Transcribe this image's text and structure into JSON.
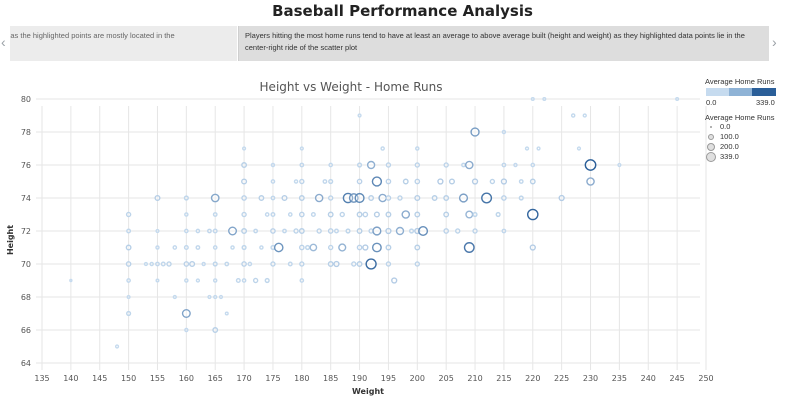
{
  "dashboard": {
    "title": "Baseball Performance Analysis"
  },
  "story": {
    "prev_caption": "distribution as the highlighted points are mostly located in the",
    "active_caption": "Players hitting the most home runs tend to have at least an average to above average built (height and weight) as they highlighted data points lie in the center-right ride of the scatter plot"
  },
  "icons": {
    "prev": "chevron-left-icon",
    "next": "chevron-right-icon"
  },
  "colors": {
    "low": "#c6dbef",
    "mid": "#8fb3d6",
    "high": "#2b5f99",
    "grid": "#e6e6e6"
  },
  "legend": {
    "color_title": "Average Home Runs",
    "color_min": "0.0",
    "color_max": "339.0",
    "size_title": "Average Home Runs",
    "size_items": [
      "0.0",
      "100.0",
      "200.0",
      "339.0"
    ]
  },
  "chart_data": {
    "type": "scatter",
    "title": "Height vs Weight - Home Runs",
    "xlabel": "Weight",
    "ylabel": "Height",
    "xlim": [
      135,
      250
    ],
    "ylim": [
      64,
      80
    ],
    "xticks": [
      135,
      140,
      145,
      150,
      155,
      160,
      165,
      170,
      175,
      180,
      185,
      190,
      195,
      200,
      205,
      210,
      215,
      220,
      225,
      230,
      235,
      240,
      245,
      250
    ],
    "yticks": [
      64,
      66,
      68,
      70,
      72,
      74,
      76,
      78,
      80
    ],
    "grid": true,
    "points": [
      {
        "x": 140,
        "y": 69,
        "hr": 0
      },
      {
        "x": 148,
        "y": 65,
        "hr": 3
      },
      {
        "x": 150,
        "y": 67,
        "hr": 15
      },
      {
        "x": 150,
        "y": 68,
        "hr": 2
      },
      {
        "x": 150,
        "y": 69,
        "hr": 8
      },
      {
        "x": 150,
        "y": 70,
        "hr": 25
      },
      {
        "x": 150,
        "y": 71,
        "hr": 30
      },
      {
        "x": 150,
        "y": 72,
        "hr": 12
      },
      {
        "x": 150,
        "y": 73,
        "hr": 20
      },
      {
        "x": 153,
        "y": 70,
        "hr": 4
      },
      {
        "x": 154,
        "y": 70,
        "hr": 6
      },
      {
        "x": 155,
        "y": 69,
        "hr": 2
      },
      {
        "x": 155,
        "y": 70,
        "hr": 10
      },
      {
        "x": 155,
        "y": 71,
        "hr": 5
      },
      {
        "x": 155,
        "y": 72,
        "hr": 3
      },
      {
        "x": 155,
        "y": 74,
        "hr": 35
      },
      {
        "x": 156,
        "y": 70,
        "hr": 12
      },
      {
        "x": 157,
        "y": 70,
        "hr": 20
      },
      {
        "x": 158,
        "y": 68,
        "hr": 4
      },
      {
        "x": 158,
        "y": 71,
        "hr": 8
      },
      {
        "x": 160,
        "y": 66,
        "hr": 5
      },
      {
        "x": 160,
        "y": 67,
        "hr": 150
      },
      {
        "x": 160,
        "y": 69,
        "hr": 6
      },
      {
        "x": 160,
        "y": 70,
        "hr": 25
      },
      {
        "x": 160,
        "y": 71,
        "hr": 12
      },
      {
        "x": 160,
        "y": 72,
        "hr": 8
      },
      {
        "x": 160,
        "y": 73,
        "hr": 6
      },
      {
        "x": 160,
        "y": 74,
        "hr": 15
      },
      {
        "x": 161,
        "y": 70,
        "hr": 35
      },
      {
        "x": 162,
        "y": 69,
        "hr": 4
      },
      {
        "x": 162,
        "y": 71,
        "hr": 10
      },
      {
        "x": 162,
        "y": 72,
        "hr": 8
      },
      {
        "x": 163,
        "y": 70,
        "hr": 5
      },
      {
        "x": 164,
        "y": 68,
        "hr": 3
      },
      {
        "x": 164,
        "y": 72,
        "hr": 10
      },
      {
        "x": 165,
        "y": 66,
        "hr": 30
      },
      {
        "x": 165,
        "y": 68,
        "hr": 4
      },
      {
        "x": 165,
        "y": 69,
        "hr": 6
      },
      {
        "x": 165,
        "y": 70,
        "hr": 15
      },
      {
        "x": 165,
        "y": 71,
        "hr": 8
      },
      {
        "x": 165,
        "y": 72,
        "hr": 12
      },
      {
        "x": 165,
        "y": 73,
        "hr": 10
      },
      {
        "x": 165,
        "y": 74,
        "hr": 140
      },
      {
        "x": 166,
        "y": 68,
        "hr": 3
      },
      {
        "x": 167,
        "y": 67,
        "hr": 2
      },
      {
        "x": 167,
        "y": 70,
        "hr": 10
      },
      {
        "x": 168,
        "y": 72,
        "hr": 150
      },
      {
        "x": 168,
        "y": 71,
        "hr": 6
      },
      {
        "x": 169,
        "y": 69,
        "hr": 12
      },
      {
        "x": 170,
        "y": 69,
        "hr": 8
      },
      {
        "x": 170,
        "y": 70,
        "hr": 25
      },
      {
        "x": 170,
        "y": 71,
        "hr": 15
      },
      {
        "x": 170,
        "y": 72,
        "hr": 30
      },
      {
        "x": 170,
        "y": 73,
        "hr": 20
      },
      {
        "x": 170,
        "y": 74,
        "hr": 25
      },
      {
        "x": 170,
        "y": 75,
        "hr": 35
      },
      {
        "x": 170,
        "y": 76,
        "hr": 30
      },
      {
        "x": 170,
        "y": 77,
        "hr": 3
      },
      {
        "x": 171,
        "y": 70,
        "hr": 8
      },
      {
        "x": 172,
        "y": 69,
        "hr": 20
      },
      {
        "x": 172,
        "y": 72,
        "hr": 10
      },
      {
        "x": 173,
        "y": 71,
        "hr": 6
      },
      {
        "x": 173,
        "y": 74,
        "hr": 30
      },
      {
        "x": 174,
        "y": 69,
        "hr": 15
      },
      {
        "x": 174,
        "y": 73,
        "hr": 8
      },
      {
        "x": 175,
        "y": 70,
        "hr": 20
      },
      {
        "x": 175,
        "y": 71,
        "hr": 15
      },
      {
        "x": 175,
        "y": 72,
        "hr": 25
      },
      {
        "x": 175,
        "y": 73,
        "hr": 12
      },
      {
        "x": 175,
        "y": 74,
        "hr": 10
      },
      {
        "x": 175,
        "y": 75,
        "hr": 8
      },
      {
        "x": 175,
        "y": 76,
        "hr": 5
      },
      {
        "x": 176,
        "y": 71,
        "hr": 190
      },
      {
        "x": 177,
        "y": 72,
        "hr": 10
      },
      {
        "x": 177,
        "y": 74,
        "hr": 35
      },
      {
        "x": 178,
        "y": 70,
        "hr": 12
      },
      {
        "x": 178,
        "y": 73,
        "hr": 8
      },
      {
        "x": 179,
        "y": 72,
        "hr": 20
      },
      {
        "x": 179,
        "y": 75,
        "hr": 6
      },
      {
        "x": 180,
        "y": 69,
        "hr": 8
      },
      {
        "x": 180,
        "y": 70,
        "hr": 20
      },
      {
        "x": 180,
        "y": 71,
        "hr": 25
      },
      {
        "x": 180,
        "y": 72,
        "hr": 30
      },
      {
        "x": 180,
        "y": 73,
        "hr": 25
      },
      {
        "x": 180,
        "y": 74,
        "hr": 30
      },
      {
        "x": 180,
        "y": 75,
        "hr": 20
      },
      {
        "x": 180,
        "y": 76,
        "hr": 10
      },
      {
        "x": 180,
        "y": 77,
        "hr": 3
      },
      {
        "x": 181,
        "y": 71,
        "hr": 15
      },
      {
        "x": 182,
        "y": 73,
        "hr": 12
      },
      {
        "x": 182,
        "y": 71,
        "hr": 90
      },
      {
        "x": 183,
        "y": 72,
        "hr": 20
      },
      {
        "x": 183,
        "y": 74,
        "hr": 130
      },
      {
        "x": 184,
        "y": 75,
        "hr": 10
      },
      {
        "x": 185,
        "y": 70,
        "hr": 30
      },
      {
        "x": 185,
        "y": 71,
        "hr": 20
      },
      {
        "x": 185,
        "y": 72,
        "hr": 25
      },
      {
        "x": 185,
        "y": 73,
        "hr": 30
      },
      {
        "x": 185,
        "y": 74,
        "hr": 20
      },
      {
        "x": 185,
        "y": 75,
        "hr": 15
      },
      {
        "x": 185,
        "y": 76,
        "hr": 8
      },
      {
        "x": 186,
        "y": 70,
        "hr": 40
      },
      {
        "x": 186,
        "y": 72,
        "hr": 12
      },
      {
        "x": 187,
        "y": 71,
        "hr": 110
      },
      {
        "x": 187,
        "y": 73,
        "hr": 20
      },
      {
        "x": 188,
        "y": 72,
        "hr": 15
      },
      {
        "x": 188,
        "y": 74,
        "hr": 250
      },
      {
        "x": 189,
        "y": 74,
        "hr": 200
      },
      {
        "x": 189,
        "y": 70,
        "hr": 20
      },
      {
        "x": 190,
        "y": 70,
        "hr": 30
      },
      {
        "x": 190,
        "y": 71,
        "hr": 25
      },
      {
        "x": 190,
        "y": 72,
        "hr": 30
      },
      {
        "x": 190,
        "y": 73,
        "hr": 30
      },
      {
        "x": 190,
        "y": 74,
        "hr": 220
      },
      {
        "x": 190,
        "y": 75,
        "hr": 25
      },
      {
        "x": 190,
        "y": 76,
        "hr": 15
      },
      {
        "x": 190,
        "y": 79,
        "hr": 3
      },
      {
        "x": 191,
        "y": 71,
        "hr": 40
      },
      {
        "x": 191,
        "y": 73,
        "hr": 25
      },
      {
        "x": 192,
        "y": 70,
        "hr": 300
      },
      {
        "x": 192,
        "y": 72,
        "hr": 20
      },
      {
        "x": 192,
        "y": 74,
        "hr": 30
      },
      {
        "x": 192,
        "y": 76,
        "hr": 120
      },
      {
        "x": 193,
        "y": 71,
        "hr": 200
      },
      {
        "x": 193,
        "y": 72,
        "hr": 160
      },
      {
        "x": 193,
        "y": 75,
        "hr": 230
      },
      {
        "x": 193,
        "y": 73,
        "hr": 35
      },
      {
        "x": 194,
        "y": 74,
        "hr": 130
      },
      {
        "x": 194,
        "y": 77,
        "hr": 6
      },
      {
        "x": 195,
        "y": 70,
        "hr": 20
      },
      {
        "x": 195,
        "y": 71,
        "hr": 30
      },
      {
        "x": 195,
        "y": 72,
        "hr": 40
      },
      {
        "x": 195,
        "y": 73,
        "hr": 30
      },
      {
        "x": 195,
        "y": 74,
        "hr": 25
      },
      {
        "x": 195,
        "y": 75,
        "hr": 25
      },
      {
        "x": 195,
        "y": 76,
        "hr": 20
      },
      {
        "x": 196,
        "y": 69,
        "hr": 40
      },
      {
        "x": 197,
        "y": 72,
        "hr": 120
      },
      {
        "x": 197,
        "y": 74,
        "hr": 20
      },
      {
        "x": 198,
        "y": 73,
        "hr": 130
      },
      {
        "x": 198,
        "y": 75,
        "hr": 30
      },
      {
        "x": 199,
        "y": 72,
        "hr": 15
      },
      {
        "x": 200,
        "y": 70,
        "hr": 20
      },
      {
        "x": 200,
        "y": 71,
        "hr": 30
      },
      {
        "x": 200,
        "y": 72,
        "hr": 40
      },
      {
        "x": 200,
        "y": 73,
        "hr": 30
      },
      {
        "x": 200,
        "y": 74,
        "hr": 35
      },
      {
        "x": 200,
        "y": 75,
        "hr": 25
      },
      {
        "x": 200,
        "y": 76,
        "hr": 20
      },
      {
        "x": 200,
        "y": 77,
        "hr": 6
      },
      {
        "x": 201,
        "y": 72,
        "hr": 210
      },
      {
        "x": 203,
        "y": 74,
        "hr": 30
      },
      {
        "x": 204,
        "y": 75,
        "hr": 40
      },
      {
        "x": 205,
        "y": 72,
        "hr": 25
      },
      {
        "x": 205,
        "y": 73,
        "hr": 30
      },
      {
        "x": 205,
        "y": 74,
        "hr": 30
      },
      {
        "x": 205,
        "y": 76,
        "hr": 20
      },
      {
        "x": 206,
        "y": 75,
        "hr": 35
      },
      {
        "x": 207,
        "y": 72,
        "hr": 20
      },
      {
        "x": 208,
        "y": 74,
        "hr": 160
      },
      {
        "x": 208,
        "y": 76,
        "hr": 10
      },
      {
        "x": 209,
        "y": 71,
        "hr": 270
      },
      {
        "x": 209,
        "y": 73,
        "hr": 100
      },
      {
        "x": 209,
        "y": 76,
        "hr": 130
      },
      {
        "x": 210,
        "y": 72,
        "hr": 20
      },
      {
        "x": 210,
        "y": 73,
        "hr": 15
      },
      {
        "x": 210,
        "y": 75,
        "hr": 40
      },
      {
        "x": 210,
        "y": 78,
        "hr": 170
      },
      {
        "x": 212,
        "y": 74,
        "hr": 280
      },
      {
        "x": 213,
        "y": 75,
        "hr": 20
      },
      {
        "x": 214,
        "y": 73,
        "hr": 15
      },
      {
        "x": 215,
        "y": 72,
        "hr": 10
      },
      {
        "x": 215,
        "y": 74,
        "hr": 25
      },
      {
        "x": 215,
        "y": 75,
        "hr": 40
      },
      {
        "x": 215,
        "y": 76,
        "hr": 10
      },
      {
        "x": 215,
        "y": 78,
        "hr": 5
      },
      {
        "x": 217,
        "y": 76,
        "hr": 5
      },
      {
        "x": 218,
        "y": 74,
        "hr": 15
      },
      {
        "x": 218,
        "y": 75,
        "hr": 10
      },
      {
        "x": 219,
        "y": 77,
        "hr": 4
      },
      {
        "x": 220,
        "y": 71,
        "hr": 40
      },
      {
        "x": 220,
        "y": 73,
        "hr": 320
      },
      {
        "x": 220,
        "y": 75,
        "hr": 30
      },
      {
        "x": 220,
        "y": 76,
        "hr": 8
      },
      {
        "x": 220,
        "y": 80,
        "hr": 2
      },
      {
        "x": 221,
        "y": 77,
        "hr": 3
      },
      {
        "x": 222,
        "y": 80,
        "hr": 2
      },
      {
        "x": 225,
        "y": 74,
        "hr": 40
      },
      {
        "x": 227,
        "y": 79,
        "hr": 6
      },
      {
        "x": 228,
        "y": 77,
        "hr": 3
      },
      {
        "x": 229,
        "y": 79,
        "hr": 4
      },
      {
        "x": 230,
        "y": 75,
        "hr": 130
      },
      {
        "x": 230,
        "y": 76,
        "hr": 339
      },
      {
        "x": 235,
        "y": 76,
        "hr": 3
      },
      {
        "x": 245,
        "y": 80,
        "hr": 2
      }
    ]
  }
}
